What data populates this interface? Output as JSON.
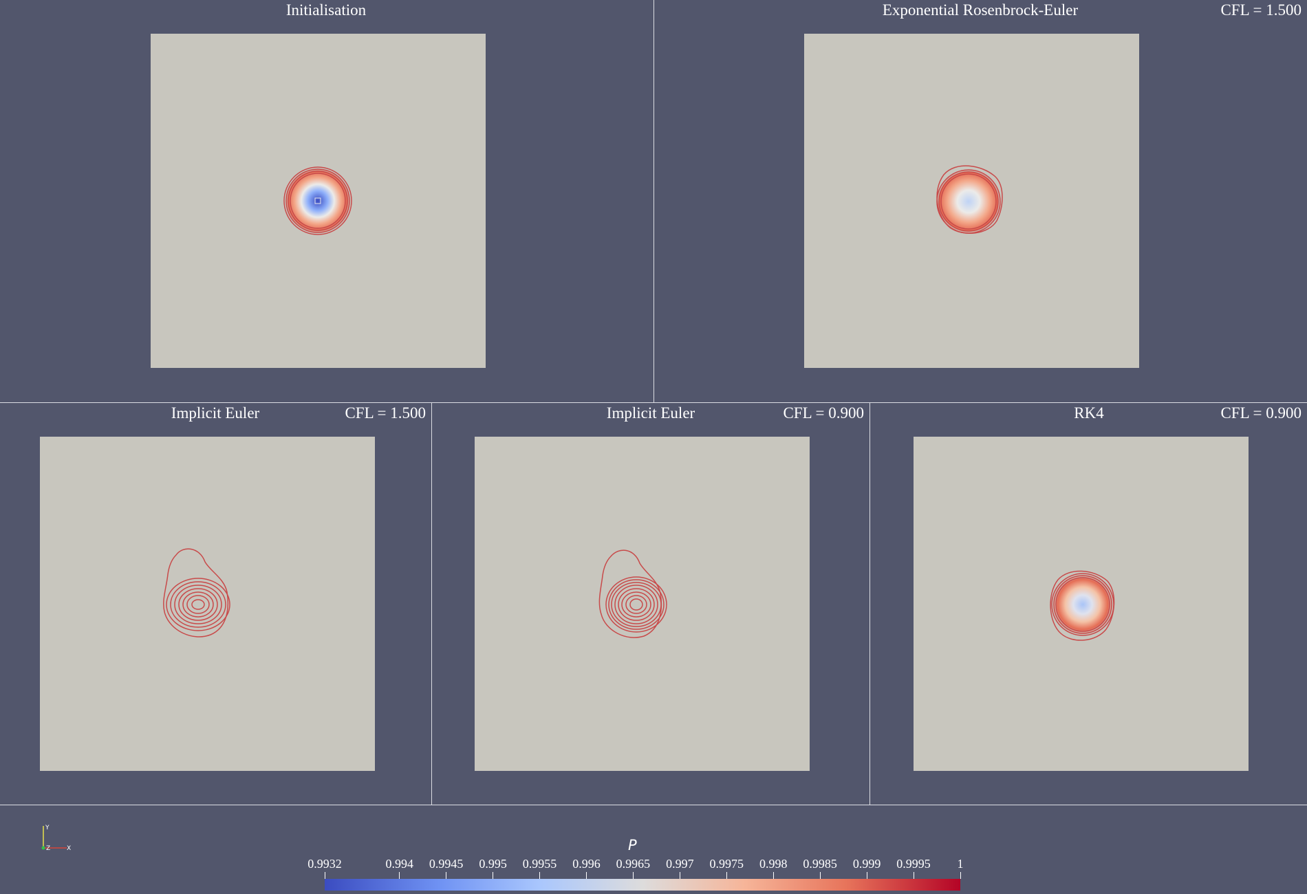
{
  "panels": [
    {
      "title": "Initialisation",
      "cfl": ""
    },
    {
      "title": "Exponential Rosenbrock-Euler",
      "cfl": "CFL = 1.500"
    },
    {
      "title": "Implicit Euler",
      "cfl": "CFL = 1.500"
    },
    {
      "title": "Implicit Euler",
      "cfl": "CFL = 0.900"
    },
    {
      "title": "RK4",
      "cfl": "CFL = 0.900"
    }
  ],
  "colorbar": {
    "title": "P",
    "ticks": [
      "0.9932",
      "0.994",
      "0.9945",
      "0.995",
      "0.9955",
      "0.996",
      "0.9965",
      "0.997",
      "0.9975",
      "0.998",
      "0.9985",
      "0.999",
      "0.9995",
      "1"
    ],
    "colors": {
      "min": "#3b4cc0",
      "mid": "#dddcdc",
      "max": "#b40426"
    }
  },
  "axes": {
    "x": "X",
    "y": "Y",
    "z": "Z"
  }
}
